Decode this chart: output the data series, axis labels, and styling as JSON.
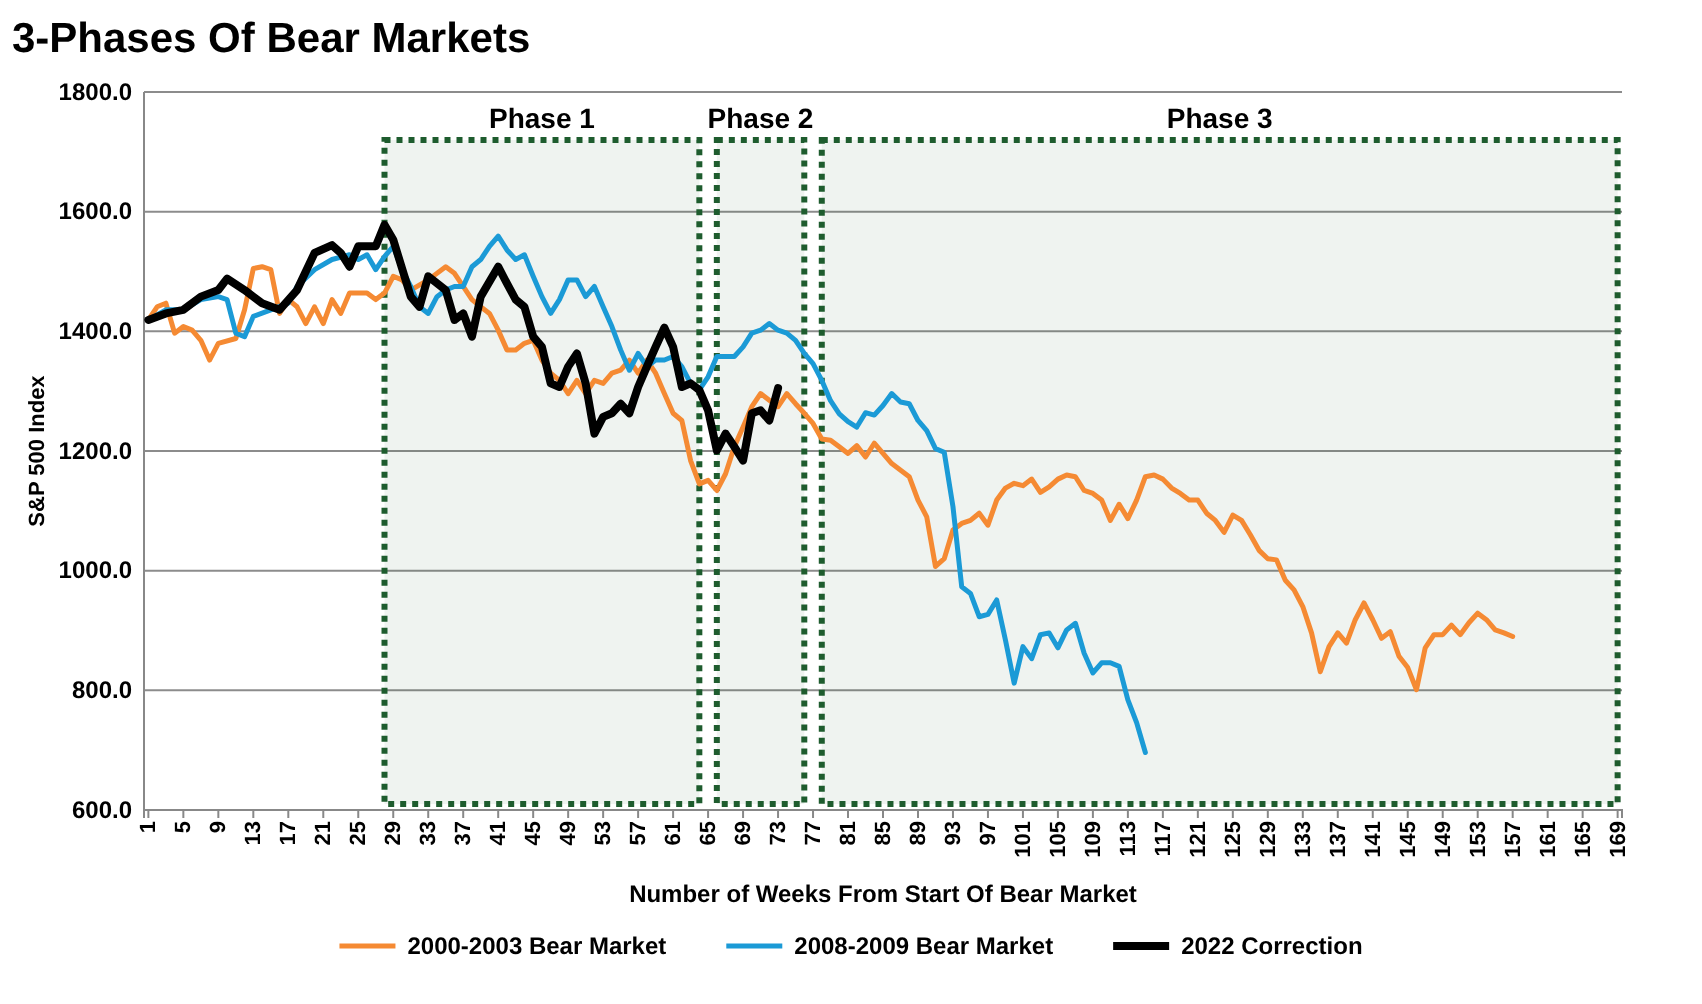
{
  "chart_data": {
    "type": "line",
    "title": "3-Phases Of Bear Markets",
    "xlabel": "Number of Weeks From Start Of Bear Market",
    "ylabel": "S&P 500 Index",
    "xlim": [
      0.5,
      169.5
    ],
    "xticks": [
      1,
      5,
      9,
      13,
      17,
      21,
      25,
      29,
      33,
      37,
      41,
      45,
      49,
      53,
      57,
      61,
      65,
      69,
      73,
      77,
      81,
      85,
      89,
      93,
      97,
      101,
      105,
      109,
      113,
      117,
      121,
      125,
      129,
      133,
      137,
      141,
      145,
      149,
      153,
      157,
      161,
      165,
      169
    ],
    "ylim": [
      600,
      1800
    ],
    "yticks": [
      {
        "value": 600,
        "label": "600.0"
      },
      {
        "value": 800,
        "label": "800.0"
      },
      {
        "value": 1000,
        "label": "1000.0"
      },
      {
        "value": 1200,
        "label": "1200.0"
      },
      {
        "value": 1400,
        "label": "1400.0"
      },
      {
        "value": 1600,
        "label": "1600.0"
      },
      {
        "value": 1800,
        "label": "1800.0"
      }
    ],
    "grid": "y",
    "legend": "bottom",
    "line_style": "solid",
    "marker": "none",
    "bands": [
      {
        "axis": "x",
        "from": 28,
        "to": 64,
        "label": "Phase 1",
        "color": "#1e5c2e"
      },
      {
        "axis": "x",
        "from": 66,
        "to": 76,
        "label": "Phase 2",
        "color": "#1e5c2e"
      },
      {
        "axis": "x",
        "from": 78,
        "to": 169,
        "label": "Phase 3",
        "color": "#1e5c2e"
      }
    ],
    "series": [
      {
        "name": "2000-2003 Bear Market",
        "color": "#f58a33",
        "x": [
          1,
          2,
          3,
          4,
          5,
          6,
          7,
          8,
          9,
          11,
          12,
          13,
          14,
          15,
          16,
          17,
          18,
          19,
          20,
          21,
          22,
          23,
          24,
          26,
          27,
          28,
          29,
          30,
          31,
          33,
          35,
          36,
          37,
          38,
          39,
          40,
          41,
          42,
          43,
          44,
          45,
          46,
          47,
          48,
          49,
          50,
          51,
          52,
          53,
          54,
          55,
          56,
          57,
          58,
          59,
          60,
          61,
          62,
          63,
          64,
          65,
          66,
          67,
          68,
          69,
          70,
          71,
          72,
          73,
          74,
          75,
          76,
          77,
          78,
          79,
          80,
          81,
          82,
          83,
          84,
          86,
          88,
          89,
          90,
          91,
          92,
          93,
          94,
          95,
          96,
          97,
          98,
          99,
          100,
          101,
          102,
          103,
          104,
          105,
          106,
          107,
          108,
          109,
          110,
          111,
          112,
          113,
          114,
          115,
          116,
          117,
          118,
          119,
          120,
          121,
          122,
          123,
          124,
          125,
          126,
          127,
          128,
          129,
          130,
          131,
          132,
          133,
          134,
          135,
          136,
          137,
          138,
          139,
          140,
          141,
          142,
          143,
          144,
          145,
          146,
          147,
          148,
          149,
          150,
          151,
          152,
          153,
          154,
          155,
          156,
          157
        ],
        "values": [
          1419,
          1441,
          1447,
          1397,
          1408,
          1402,
          1385,
          1352,
          1380,
          1388,
          1436,
          1505,
          1508,
          1503,
          1430,
          1453,
          1441,
          1413,
          1441,
          1413,
          1453,
          1430,
          1464,
          1464,
          1453,
          1464,
          1492,
          1486,
          1469,
          1486,
          1508,
          1497,
          1475,
          1453,
          1441,
          1430,
          1402,
          1369,
          1369,
          1380,
          1385,
          1352,
          1330,
          1318,
          1296,
          1318,
          1296,
          1318,
          1313,
          1330,
          1335,
          1352,
          1330,
          1352,
          1330,
          1296,
          1263,
          1251,
          1184,
          1145,
          1151,
          1134,
          1162,
          1207,
          1240,
          1274,
          1296,
          1285,
          1274,
          1296,
          1279,
          1263,
          1246,
          1220,
          1218,
          1207,
          1196,
          1209,
          1190,
          1213,
          1179,
          1157,
          1118,
          1090,
          1007,
          1020,
          1068,
          1079,
          1084,
          1096,
          1076,
          1118,
          1138,
          1146,
          1142,
          1153,
          1131,
          1140,
          1153,
          1160,
          1157,
          1134,
          1129,
          1118,
          1084,
          1111,
          1087,
          1118,
          1157,
          1160,
          1153,
          1138,
          1129,
          1118,
          1118,
          1096,
          1084,
          1064,
          1093,
          1084,
          1060,
          1034,
          1020,
          1018,
          984,
          968,
          940,
          896,
          831,
          873,
          896,
          879,
          918,
          946,
          918,
          887,
          898,
          857,
          838,
          801,
          871,
          893,
          893,
          909,
          893,
          913,
          929,
          918,
          901,
          896,
          890
        ]
      },
      {
        "name": "2008-2009 Bear Market",
        "color": "#1b9ad6",
        "x": [
          1,
          3,
          5,
          7,
          9,
          10,
          11,
          12,
          13,
          15,
          17,
          18,
          20,
          22,
          24,
          25,
          26,
          27,
          28,
          29,
          30,
          31,
          32,
          33,
          34,
          35,
          36,
          37,
          38,
          39,
          40,
          41,
          42,
          43,
          44,
          45,
          46,
          47,
          48,
          49,
          50,
          51,
          52,
          53,
          54,
          55,
          56,
          57,
          58,
          59,
          60,
          61,
          62,
          63,
          64,
          65,
          66,
          67,
          68,
          69,
          70,
          71,
          72,
          73,
          74,
          75,
          76,
          77,
          78,
          79,
          80,
          81,
          82,
          83,
          84,
          85,
          86,
          87,
          88,
          89,
          90,
          91,
          92,
          93,
          94,
          95,
          96,
          97,
          98,
          99,
          100,
          101,
          102,
          103,
          104,
          105,
          106,
          107,
          108,
          109,
          110,
          111,
          112,
          113,
          114,
          115
        ],
        "values": [
          1419,
          1436,
          1436,
          1453,
          1458,
          1453,
          1397,
          1391,
          1425,
          1436,
          1447,
          1475,
          1503,
          1520,
          1528,
          1520,
          1528,
          1503,
          1525,
          1542,
          1503,
          1475,
          1441,
          1430,
          1458,
          1469,
          1475,
          1475,
          1508,
          1520,
          1542,
          1559,
          1536,
          1520,
          1528,
          1492,
          1458,
          1430,
          1453,
          1486,
          1486,
          1458,
          1475,
          1441,
          1408,
          1369,
          1335,
          1363,
          1341,
          1352,
          1352,
          1358,
          1341,
          1313,
          1302,
          1324,
          1358,
          1358,
          1358,
          1374,
          1397,
          1402,
          1413,
          1402,
          1397,
          1385,
          1363,
          1346,
          1318,
          1284,
          1262,
          1249,
          1240,
          1264,
          1260,
          1276,
          1296,
          1282,
          1279,
          1251,
          1234,
          1204,
          1198,
          1107,
          973,
          962,
          923,
          927,
          951,
          884,
          812,
          873,
          853,
          893,
          896,
          871,
          901,
          912,
          862,
          829,
          846,
          846,
          840,
          784,
          746,
          696
        ]
      },
      {
        "name": "2022 Correction",
        "color": "#000000",
        "x": [
          1,
          3,
          5,
          7,
          9,
          10,
          12,
          14,
          16,
          18,
          20,
          22,
          23,
          24,
          25,
          27,
          28,
          29,
          31,
          32,
          33,
          35,
          36,
          37,
          38,
          39,
          41,
          42,
          43,
          44,
          45,
          46,
          47,
          48,
          49,
          50,
          51,
          52,
          53,
          54,
          55,
          56,
          57,
          58,
          59,
          60,
          61,
          62,
          63,
          64,
          65,
          66,
          67,
          68,
          69,
          70,
          71,
          72,
          73
        ],
        "values": [
          1419,
          1430,
          1436,
          1458,
          1469,
          1488,
          1469,
          1447,
          1436,
          1469,
          1531,
          1544,
          1531,
          1508,
          1542,
          1542,
          1578,
          1553,
          1458,
          1441,
          1492,
          1469,
          1419,
          1430,
          1391,
          1458,
          1508,
          1480,
          1453,
          1441,
          1391,
          1374,
          1313,
          1307,
          1341,
          1363,
          1313,
          1229,
          1257,
          1263,
          1279,
          1263,
          1307,
          1341,
          1374,
          1406,
          1374,
          1307,
          1313,
          1302,
          1268,
          1201,
          1229,
          1207,
          1184,
          1263,
          1268,
          1251,
          1305
        ]
      }
    ]
  }
}
